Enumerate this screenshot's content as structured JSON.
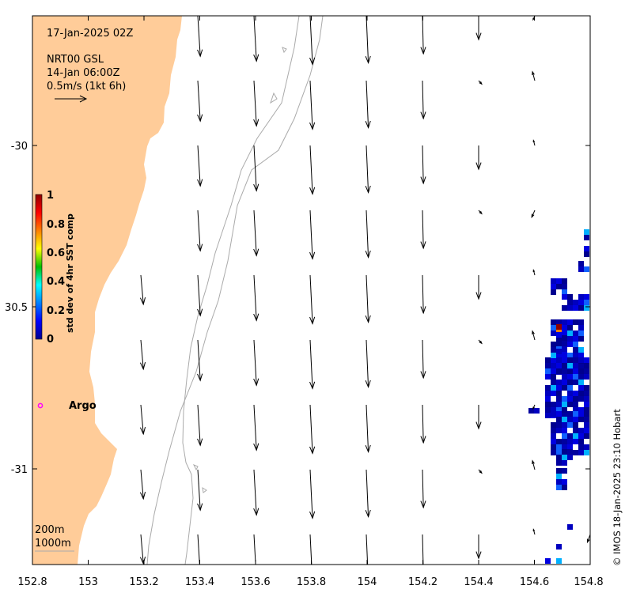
{
  "header": {
    "timestamp": "17-Jan-2025 02Z",
    "source": "NRT00 GSL",
    "source_time": "14-Jan 06:00Z",
    "scale_text": "0.5m/s (1kt 6h)"
  },
  "colorbar": {
    "label": "std dev of 4hr SST comp",
    "ticks": [
      "1",
      "0.8",
      "0.6",
      "0.4",
      "0.2",
      "0"
    ]
  },
  "argo": {
    "label": "Argo",
    "marker_color": "#ff00ff"
  },
  "contours": {
    "labels": [
      "200m",
      "1000m"
    ]
  },
  "x_axis": {
    "ticks": [
      "152.8",
      "153",
      "153.2",
      "153.4",
      "153.6",
      "153.8",
      "154",
      "154.2",
      "154.4",
      "154.6",
      "154.8"
    ]
  },
  "y_axis": {
    "ticks": [
      "-30",
      "30.5",
      "-31"
    ]
  },
  "credit": "© IMOS 18-Jan-2025 23:10 Hobart",
  "colors": {
    "land": "#ffcc99",
    "contour": "#aaaaaa",
    "sst_low": "#00008f",
    "sst_high": "#8f0000"
  }
}
